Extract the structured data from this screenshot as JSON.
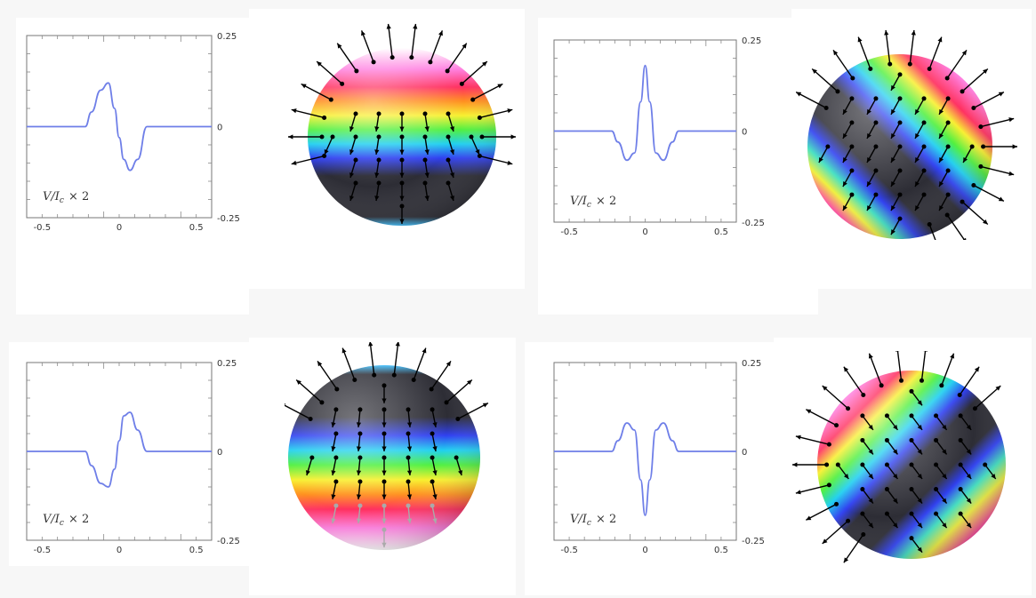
{
  "figure": {
    "plot_label": "V/I",
    "plot_label_sub": "c",
    "plot_label_suffix": "× 2"
  },
  "colors": {
    "line": "#6f7fe8",
    "frame": "#777777",
    "arrow": "#000000",
    "dark_band": "#2d2d35"
  },
  "chart_data": [
    {
      "type": "line",
      "series": [
        {
          "x": [
            -0.6,
            -0.22,
            -0.18,
            -0.12,
            -0.07,
            -0.03,
            0.0,
            0.03,
            0.07,
            0.12,
            0.18,
            0.22,
            0.6
          ],
          "y": [
            0,
            0,
            0.04,
            0.1,
            0.12,
            0.05,
            -0.03,
            -0.09,
            -0.12,
            -0.09,
            0,
            0,
            0
          ]
        }
      ],
      "xlim": [
        -0.6,
        0.6
      ],
      "ylim": [
        -0.25,
        0.25
      ],
      "xticks": [
        "-0.5",
        "0",
        "0.5"
      ],
      "yticks": [
        "0.25",
        "0",
        "-0.25"
      ],
      "sphere": "pole-up"
    },
    {
      "type": "line",
      "series": [
        {
          "x": [
            -0.6,
            -0.22,
            -0.18,
            -0.12,
            -0.07,
            -0.03,
            0.0,
            0.03,
            0.07,
            0.12,
            0.18,
            0.22,
            0.6
          ],
          "y": [
            0,
            0,
            -0.03,
            -0.08,
            -0.06,
            0.08,
            0.18,
            0.08,
            -0.06,
            -0.08,
            -0.03,
            0,
            0
          ]
        }
      ],
      "xlim": [
        -0.6,
        0.6
      ],
      "ylim": [
        -0.25,
        0.25
      ],
      "xticks": [
        "-0.5",
        "0",
        "0.5"
      ],
      "yticks": [
        "0.25",
        "0",
        "-0.25"
      ],
      "sphere": "tilted"
    },
    {
      "type": "line",
      "series": [
        {
          "x": [
            -0.6,
            -0.22,
            -0.18,
            -0.12,
            -0.07,
            -0.03,
            0.0,
            0.03,
            0.07,
            0.12,
            0.18,
            0.22,
            0.6
          ],
          "y": [
            0,
            0,
            -0.04,
            -0.09,
            -0.1,
            -0.05,
            0.03,
            0.1,
            0.11,
            0.06,
            0,
            0,
            0
          ]
        }
      ],
      "xlim": [
        -0.6,
        0.6
      ],
      "ylim": [
        -0.25,
        0.25
      ],
      "xticks": [
        "-0.5",
        "0",
        "0.5"
      ],
      "yticks": [
        "0.25",
        "0",
        "-0.25"
      ],
      "sphere": "pole-down"
    },
    {
      "type": "line",
      "series": [
        {
          "x": [
            -0.6,
            -0.22,
            -0.18,
            -0.12,
            -0.07,
            -0.03,
            0.0,
            0.03,
            0.07,
            0.12,
            0.18,
            0.22,
            0.6
          ],
          "y": [
            0,
            0,
            0.03,
            0.08,
            0.06,
            -0.08,
            -0.18,
            -0.08,
            0.06,
            0.08,
            0.03,
            0,
            0
          ]
        }
      ],
      "xlim": [
        -0.6,
        0.6
      ],
      "ylim": [
        -0.25,
        0.25
      ],
      "xticks": [
        "-0.5",
        "0",
        "0.5"
      ],
      "yticks": [
        "0.25",
        "0",
        "-0.25"
      ],
      "sphere": "tilted-mirror"
    }
  ]
}
